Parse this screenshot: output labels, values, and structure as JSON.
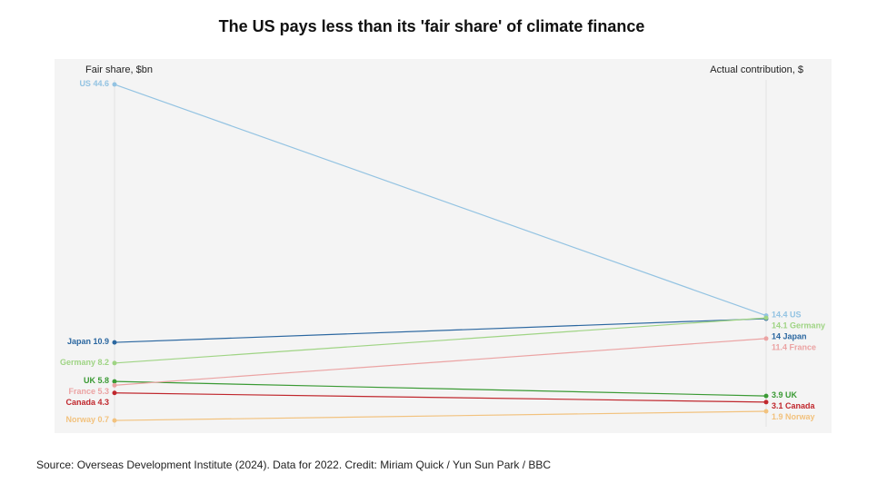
{
  "chart_data": {
    "type": "slope",
    "title": "The US pays less than its 'fair share' of climate finance",
    "left_label": "Fair share, $bn",
    "right_label": "Actual contribution, $",
    "source": "Source: Overseas Development Institute (2024). Data for 2022. Credit: Miriam Quick / Yun Sun Park / BBC",
    "series": [
      {
        "name": "US",
        "color": "#93c3e2",
        "values": [
          44.6,
          14.4
        ]
      },
      {
        "name": "Japan",
        "color": "#2b67a0",
        "values": [
          10.9,
          14
        ]
      },
      {
        "name": "Germany",
        "color": "#9fd484",
        "values": [
          8.2,
          14.1
        ]
      },
      {
        "name": "UK",
        "color": "#3a9a34",
        "values": [
          5.8,
          3.9
        ]
      },
      {
        "name": "France",
        "color": "#eba3a3",
        "values": [
          5.3,
          11.4
        ]
      },
      {
        "name": "Canada",
        "color": "#c0272d",
        "values": [
          4.3,
          3.1
        ]
      },
      {
        "name": "Norway",
        "color": "#f2c27e",
        "values": [
          0.7,
          1.9
        ]
      }
    ]
  }
}
